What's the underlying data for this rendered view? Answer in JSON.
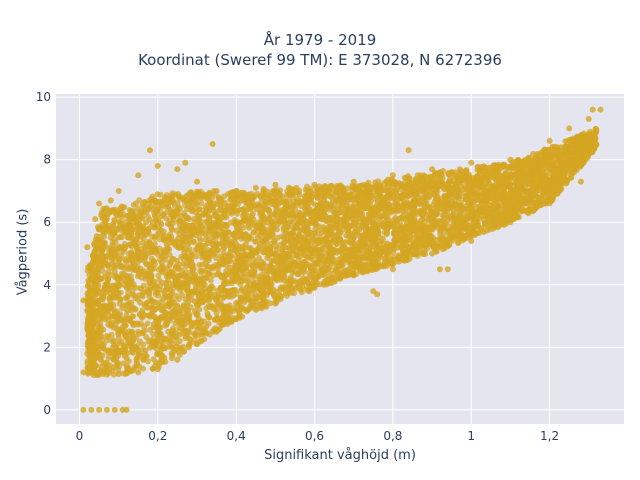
{
  "chart_data": {
    "type": "scatter",
    "title": [
      "År 1979 - 2019",
      "Koordinat (Sweref 99 TM): E 373028, N 6272396"
    ],
    "xlabel": "Signifikant våghöjd (m)",
    "ylabel": "Vågperiod (s)",
    "xlim": [
      -0.06,
      1.39
    ],
    "ylim": [
      -0.45,
      10.1
    ],
    "x_ticks": [
      0,
      0.2,
      0.4,
      0.6,
      0.8,
      1,
      1.2
    ],
    "x_tick_labels": [
      "0",
      "0,2",
      "0,4",
      "0,6",
      "0,8",
      "1",
      "1,2"
    ],
    "y_ticks": [
      0,
      2,
      4,
      6,
      8,
      10
    ],
    "y_tick_labels": [
      "0",
      "2",
      "4",
      "6",
      "8",
      "10"
    ],
    "grid": true,
    "legend": "none",
    "colors": {
      "marker": "#d4a522",
      "plot_bg": "#e5e5f0",
      "grid": "#ffffff",
      "text": "#2a3f5f"
    },
    "series": [
      {
        "points": [
          [
            0.01,
            0
          ],
          [
            0.03,
            0
          ],
          [
            0.05,
            0
          ],
          [
            0.07,
            0
          ],
          [
            0.09,
            0
          ],
          [
            0.11,
            0
          ],
          [
            0.12,
            0
          ],
          [
            0.01,
            1.2
          ],
          [
            0.02,
            1.8
          ],
          [
            0.02,
            2.6
          ],
          [
            0.01,
            3.5
          ],
          [
            0.03,
            4.5
          ],
          [
            0.02,
            5.2
          ],
          [
            0.04,
            6.1
          ],
          [
            0.05,
            6.6
          ],
          [
            0.06,
            1.15
          ],
          [
            0.1,
            1.15
          ],
          [
            0.15,
            1.2
          ],
          [
            0.2,
            1.3
          ],
          [
            0.25,
            1.6
          ],
          [
            0.3,
            2.1
          ],
          [
            0.35,
            2.5
          ],
          [
            0.4,
            2.9
          ],
          [
            0.45,
            3.2
          ],
          [
            0.5,
            3.4
          ],
          [
            0.6,
            3.9
          ],
          [
            0.7,
            4.3
          ],
          [
            0.8,
            4.5
          ],
          [
            0.9,
            5.0
          ],
          [
            1.0,
            5.4
          ],
          [
            1.1,
            6.0
          ],
          [
            1.2,
            6.6
          ],
          [
            1.28,
            7.3
          ],
          [
            0.08,
            6.7
          ],
          [
            0.1,
            7.0
          ],
          [
            0.15,
            7.5
          ],
          [
            0.2,
            7.8
          ],
          [
            0.25,
            7.7
          ],
          [
            0.3,
            7.3
          ],
          [
            0.35,
            7.0
          ],
          [
            0.4,
            7.0
          ],
          [
            0.45,
            7.1
          ],
          [
            0.5,
            7.2
          ],
          [
            0.6,
            7.2
          ],
          [
            0.7,
            7.3
          ],
          [
            0.8,
            7.5
          ],
          [
            0.9,
            7.7
          ],
          [
            1.0,
            7.9
          ],
          [
            1.1,
            8.0
          ],
          [
            1.2,
            8.6
          ],
          [
            1.25,
            9.0
          ],
          [
            1.3,
            9.3
          ],
          [
            1.31,
            9.6
          ],
          [
            1.33,
            9.6
          ],
          [
            0.18,
            8.3
          ],
          [
            0.27,
            7.9
          ],
          [
            0.34,
            8.5
          ],
          [
            0.84,
            8.3
          ],
          [
            0.92,
            4.5
          ],
          [
            0.94,
            4.5
          ],
          [
            0.75,
            3.8
          ],
          [
            0.76,
            3.7
          ],
          [
            0.13,
            5.5
          ],
          [
            0.17,
            6.0
          ],
          [
            0.22,
            6.5
          ],
          [
            0.05,
            5.8
          ],
          [
            0.07,
            4.0
          ],
          [
            0.09,
            3.0
          ]
        ]
      }
    ],
    "bulk_cloud": {
      "count": 6000,
      "x_range": [
        0.02,
        1.32
      ],
      "lower_bound": [
        [
          0.02,
          1.1
        ],
        [
          0.06,
          1.1
        ],
        [
          0.12,
          1.15
        ],
        [
          0.2,
          1.3
        ],
        [
          0.3,
          2.1
        ],
        [
          0.4,
          2.9
        ],
        [
          0.5,
          3.4
        ],
        [
          0.7,
          4.3
        ],
        [
          0.9,
          5.0
        ],
        [
          1.1,
          6.0
        ],
        [
          1.2,
          6.6
        ],
        [
          1.32,
          8.4
        ]
      ],
      "upper_bound": [
        [
          0.02,
          4.5
        ],
        [
          0.06,
          6.5
        ],
        [
          0.12,
          6.6
        ],
        [
          0.2,
          6.9
        ],
        [
          0.3,
          7.0
        ],
        [
          0.4,
          7.0
        ],
        [
          0.5,
          7.1
        ],
        [
          0.7,
          7.2
        ],
        [
          0.9,
          7.6
        ],
        [
          1.1,
          7.9
        ],
        [
          1.2,
          8.4
        ],
        [
          1.32,
          9.0
        ]
      ]
    }
  }
}
